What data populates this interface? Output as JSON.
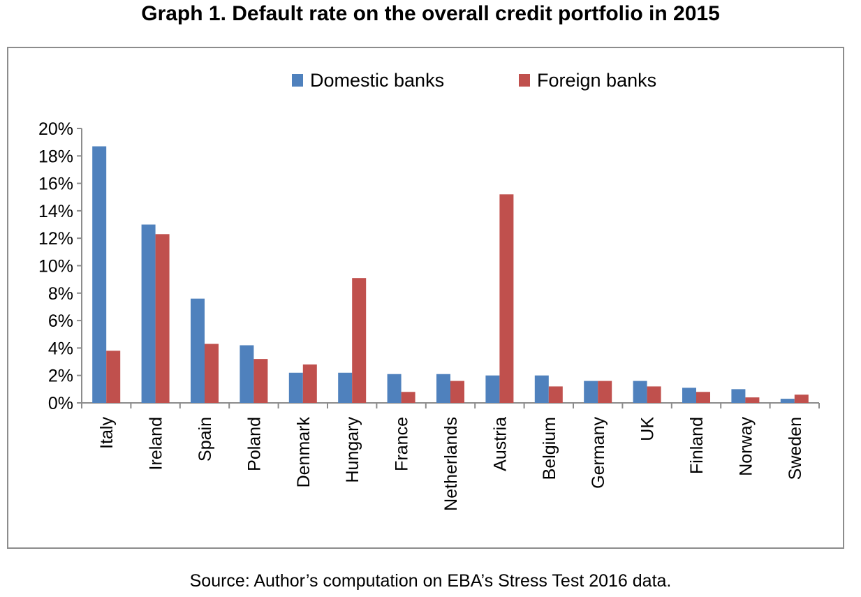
{
  "chart_data": {
    "type": "bar",
    "title": "Graph 1. Default rate on the overall credit portfolio in 2015",
    "xlabel": "",
    "ylabel": "",
    "ylim": [
      0,
      20
    ],
    "yticks": [
      "0%",
      "2%",
      "4%",
      "6%",
      "8%",
      "10%",
      "12%",
      "14%",
      "16%",
      "18%",
      "20%"
    ],
    "ytick_values": [
      0,
      2,
      4,
      6,
      8,
      10,
      12,
      14,
      16,
      18,
      20
    ],
    "grid": false,
    "legend_position": "top-center",
    "categories": [
      "Italy",
      "Ireland",
      "Spain",
      "Poland",
      "Denmark",
      "Hungary",
      "France",
      "Netherlands",
      "Austria",
      "Belgium",
      "Germany",
      "UK",
      "Finland",
      "Norway",
      "Sweden"
    ],
    "series": [
      {
        "name": "Domestic banks",
        "color": "#4f81bd",
        "values": [
          18.7,
          13.0,
          7.6,
          4.2,
          2.2,
          2.2,
          2.1,
          2.1,
          2.0,
          2.0,
          1.6,
          1.6,
          1.1,
          1.0,
          0.3
        ]
      },
      {
        "name": "Foreign banks",
        "color": "#c0504d",
        "values": [
          3.8,
          12.3,
          4.3,
          3.2,
          2.8,
          9.1,
          0.8,
          1.6,
          15.2,
          1.2,
          1.6,
          1.2,
          0.8,
          0.4,
          0.6
        ]
      }
    ],
    "source": "Source: Author’s computation on EBA’s Stress Test 2016 data."
  }
}
